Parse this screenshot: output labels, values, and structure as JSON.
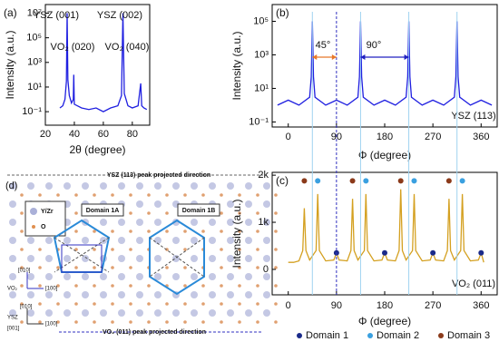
{
  "chart_data": [
    {
      "type": "line",
      "label": "(a)",
      "log_y": true,
      "y_label": "Intensity (a.u.)",
      "x_label": "2θ (degree)",
      "xlim": [
        20,
        92
      ],
      "xticks": [
        20,
        40,
        60,
        80
      ],
      "ylim": [
        0.008,
        50000000
      ],
      "yticks": [
        {
          "value": 0.1,
          "label": "10⁻¹"
        },
        {
          "value": 10,
          "label": "10¹"
        },
        {
          "value": 1000,
          "label": "10³"
        },
        {
          "value": 100000,
          "label": "10⁵"
        },
        {
          "value": 10000000,
          "label": "10⁷"
        }
      ],
      "annotations": [
        "YSZ (001)",
        "YSZ (002)",
        "VO₂ (020)",
        "VO₂ (040)"
      ],
      "series": [
        {
          "color": "#1f1fe0",
          "x": [
            30,
            32,
            33.5,
            34.5,
            35,
            35.5,
            36.5,
            38,
            39.3,
            39.6,
            40,
            45,
            50,
            55,
            60,
            65,
            70,
            72.5,
            73.5,
            74.5,
            77,
            80,
            84,
            85.8,
            86.5,
            88,
            90
          ],
          "values": [
            0.2,
            0.3,
            1,
            30,
            10000000,
            40,
            2,
            0.5,
            1,
            100,
            0.4,
            0.2,
            0.15,
            0.2,
            0.1,
            0.2,
            0.3,
            2,
            10000000,
            3,
            0.3,
            0.2,
            0.3,
            20,
            0.3,
            0.2,
            0.15
          ]
        }
      ]
    },
    {
      "type": "line",
      "label": "(b)",
      "log_y": true,
      "y_label": "Intensity (a.u.)",
      "x_label": "Φ (degree)",
      "xlim": [
        -30,
        390
      ],
      "xticks": [
        0,
        90,
        180,
        270,
        360
      ],
      "ylim": [
        0.05,
        1000000
      ],
      "yticks": [
        {
          "value": 0.1,
          "label": "10⁻¹"
        },
        {
          "value": 10,
          "label": "10¹"
        },
        {
          "value": 1000,
          "label": "10³"
        },
        {
          "value": 100000,
          "label": "10⁵"
        }
      ],
      "annotations": [
        "45°",
        "90°",
        "YSZ (113)"
      ],
      "vlines": [
        45,
        135,
        225,
        315
      ],
      "vline_color": "#9fd3f0",
      "dashed_vline": 90,
      "dashed_color": "#3030c0",
      "arrow_colors": [
        "#e8782a",
        "#2020c0"
      ],
      "series": [
        {
          "color": "#1f1fe0",
          "x": [
            -20,
            0,
            20,
            40,
            43,
            45,
            47,
            50,
            70,
            90,
            110,
            130,
            133,
            135,
            137,
            140,
            160,
            180,
            200,
            220,
            223,
            225,
            227,
            230,
            250,
            270,
            290,
            310,
            313,
            315,
            317,
            320,
            340,
            360,
            380
          ],
          "values": [
            1,
            2,
            1,
            3,
            50,
            100000,
            50,
            3,
            1,
            2,
            1,
            3,
            50,
            100000,
            50,
            3,
            1,
            2,
            1,
            3,
            50,
            100000,
            50,
            3,
            1,
            2,
            1,
            3,
            50,
            100000,
            50,
            3,
            1,
            2,
            1
          ]
        }
      ]
    },
    {
      "type": "line",
      "label": "(c)",
      "log_y": false,
      "y_label": "Intensity (a.u.)",
      "x_label": "Φ (degree)",
      "xlim": [
        -30,
        390
      ],
      "xticks": [
        0,
        90,
        180,
        270,
        360
      ],
      "ylim": [
        -540,
        2060
      ],
      "yticks": [
        0,
        {
          "value": 1000,
          "label": "1k"
        },
        {
          "value": 2000,
          "label": "2k"
        }
      ],
      "annotations": [
        "VO₂ (011)"
      ],
      "series": [
        {
          "color": "#d4a020",
          "x": [
            0,
            10,
            20,
            27,
            30,
            33,
            40,
            52,
            55,
            58,
            70,
            85,
            90,
            95,
            110,
            117,
            120,
            123,
            130,
            142,
            145,
            148,
            160,
            175,
            180,
            185,
            200,
            207,
            210,
            213,
            220,
            232,
            235,
            238,
            250,
            265,
            270,
            275,
            290,
            297,
            300,
            303,
            310,
            322,
            325,
            328,
            340,
            355,
            360,
            365
          ],
          "values": [
            150,
            150,
            180,
            400,
            1300,
            400,
            200,
            400,
            1600,
            400,
            180,
            200,
            350,
            200,
            180,
            400,
            1500,
            400,
            200,
            400,
            1600,
            400,
            180,
            200,
            350,
            200,
            180,
            400,
            1700,
            400,
            200,
            400,
            1600,
            400,
            180,
            200,
            350,
            200,
            180,
            400,
            1500,
            400,
            200,
            400,
            1600,
            400,
            180,
            200,
            350,
            150
          ]
        }
      ],
      "markers": [
        {
          "name": "Domain 1",
          "color": "#1a2a8a",
          "x": [
            90,
            180,
            270,
            360
          ],
          "values": [
            350,
            350,
            350,
            350
          ]
        },
        {
          "name": "Domain 2",
          "color": "#3aa0e0",
          "x": [
            55,
            145,
            235,
            325
          ],
          "values": [
            1880,
            1880,
            1880,
            1880
          ]
        },
        {
          "name": "Domain 3",
          "color": "#8b3a1a",
          "x": [
            30,
            120,
            210,
            300
          ],
          "values": [
            1880,
            1880,
            1880,
            1880
          ]
        }
      ]
    }
  ],
  "diagram": {
    "label": "(d)",
    "legend": [
      "Y/Zr",
      "O"
    ],
    "top_direction": "YSZ (113) peak projected direction",
    "domains": [
      "Domain 1A",
      "Domain 1B"
    ],
    "bottom_direction": "VO₂ (011) peak projected direction",
    "vo2_axes": [
      "VO₂",
      "[010]",
      "[100]"
    ],
    "ysz_axes": [
      "YSZ",
      "[010]",
      "[100]",
      "[001]"
    ]
  }
}
